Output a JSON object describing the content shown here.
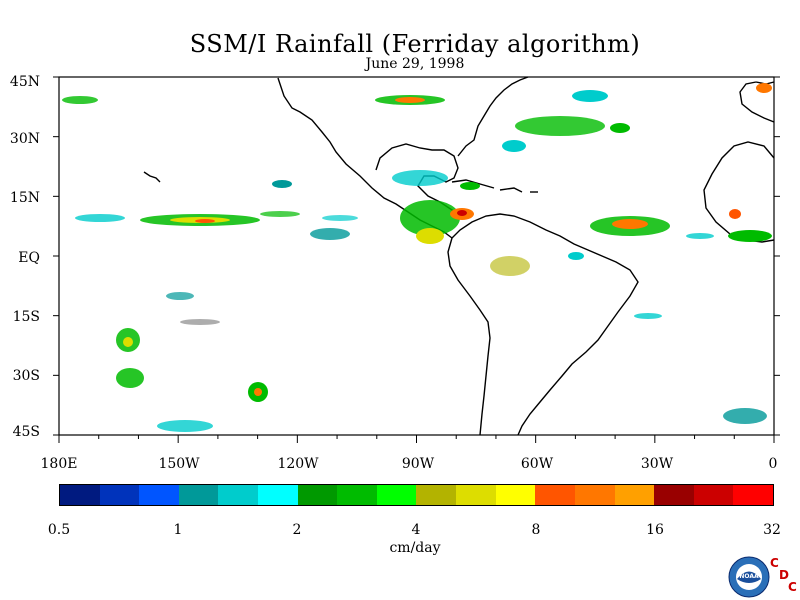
{
  "title": "SSM/I Rainfall (Ferriday algorithm)",
  "date": "June 29, 1998",
  "lat_labels": [
    "45N",
    "30N",
    "15N",
    "EQ",
    "15S",
    "30S",
    "45S"
  ],
  "lon_labels": [
    "180E",
    "150W",
    "120W",
    "90W",
    "60W",
    "30W",
    "0"
  ],
  "colorbar": {
    "colors": [
      "#001a80",
      "#0033bb",
      "#0055ff",
      "#009999",
      "#00cccc",
      "#00ffff",
      "#009900",
      "#00bb00",
      "#00ff00",
      "#b3b300",
      "#dddd00",
      "#ffff00",
      "#ff5500",
      "#ff7700",
      "#ffa000",
      "#990000",
      "#cc0000",
      "#ff0000"
    ],
    "tick_labels": [
      "0.5",
      "1",
      "2",
      "4",
      "8",
      "16",
      "32"
    ],
    "units": "cm/day"
  },
  "logo": {
    "name": "noaa-logo",
    "text": "NOAA",
    "letters": [
      "C",
      "D",
      "C"
    ]
  }
}
